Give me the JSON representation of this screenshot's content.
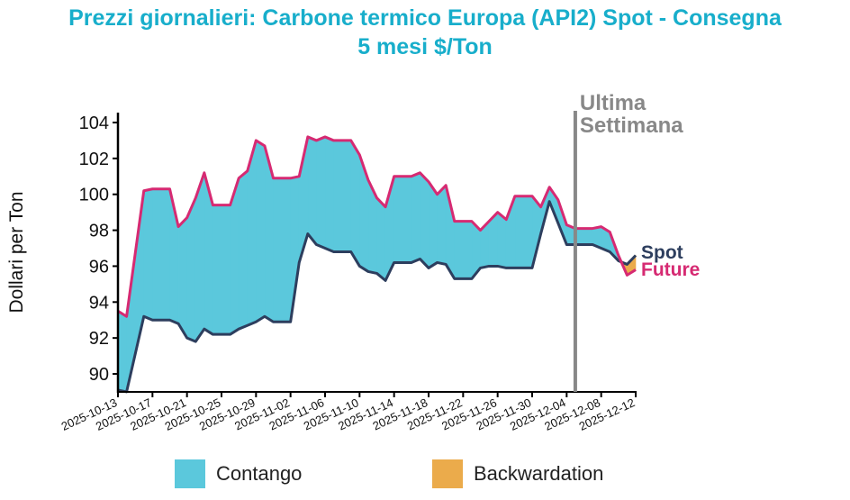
{
  "chart_data": {
    "type": "area",
    "title_line1": "Prezzi giornalieri: Carbone termico Europa (API2) Spot - Consegna",
    "title_line2": "5 mesi $/Ton",
    "ylabel": "Dollari per Ton",
    "xlabel": "",
    "ylim": [
      88.9,
      104.6
    ],
    "yticks": [
      90,
      92,
      94,
      96,
      98,
      100,
      102,
      104
    ],
    "xlim": [
      "2025-10-13",
      "2025-12-12"
    ],
    "xticks": [
      "2025-10-13",
      "2025-10-17",
      "2025-10-21",
      "2025-10-25",
      "2025-10-29",
      "2025-11-02",
      "2025-11-06",
      "2025-11-10",
      "2025-11-14",
      "2025-11-18",
      "2025-11-22",
      "2025-11-26",
      "2025-11-30",
      "2025-12-04",
      "2025-12-08",
      "2025-12-12"
    ],
    "x": [
      "2025-10-13",
      "2025-10-14",
      "2025-10-16",
      "2025-10-17",
      "2025-10-19",
      "2025-10-20",
      "2025-10-21",
      "2025-10-22",
      "2025-10-23",
      "2025-10-24",
      "2025-10-26",
      "2025-10-27",
      "2025-10-28",
      "2025-10-29",
      "2025-10-30",
      "2025-10-31",
      "2025-11-02",
      "2025-11-03",
      "2025-11-04",
      "2025-11-05",
      "2025-11-06",
      "2025-11-07",
      "2025-11-09",
      "2025-11-10",
      "2025-11-11",
      "2025-11-12",
      "2025-11-13",
      "2025-11-14",
      "2025-11-16",
      "2025-11-17",
      "2025-11-18",
      "2025-11-19",
      "2025-11-20",
      "2025-11-21",
      "2025-11-23",
      "2025-11-24",
      "2025-11-25",
      "2025-11-26",
      "2025-11-27",
      "2025-11-28",
      "2025-11-30",
      "2025-12-01",
      "2025-12-02",
      "2025-12-03",
      "2025-12-04",
      "2025-12-05",
      "2025-12-07",
      "2025-12-08",
      "2025-12-09",
      "2025-12-10",
      "2025-12-11",
      "2025-12-12"
    ],
    "series": [
      {
        "name": "Spot",
        "color": "#2d3e5e",
        "values": [
          89.1,
          89.0,
          93.2,
          93.0,
          93.0,
          92.8,
          92.0,
          91.8,
          92.5,
          92.2,
          92.2,
          92.5,
          92.7,
          92.9,
          93.2,
          92.9,
          92.9,
          96.2,
          97.8,
          97.2,
          97.0,
          96.8,
          96.8,
          96.0,
          95.7,
          95.6,
          95.2,
          96.2,
          96.2,
          96.4,
          95.9,
          96.2,
          96.1,
          95.3,
          95.3,
          95.9,
          96.0,
          96.0,
          95.9,
          95.9,
          95.9,
          97.8,
          99.6,
          98.4,
          97.2,
          97.2,
          97.2,
          97.0,
          96.8,
          96.3,
          96.1,
          96.6
        ]
      },
      {
        "name": "Future",
        "color": "#d62a72",
        "values": [
          93.5,
          93.2,
          100.2,
          100.3,
          100.3,
          98.2,
          98.7,
          99.8,
          101.2,
          99.4,
          99.4,
          100.9,
          101.3,
          103.0,
          102.7,
          100.9,
          100.9,
          101.0,
          103.2,
          103.0,
          103.2,
          103.0,
          103.0,
          102.2,
          100.8,
          99.8,
          99.3,
          101.0,
          101.0,
          101.2,
          100.7,
          100.0,
          100.5,
          98.5,
          98.5,
          98.0,
          98.5,
          99.0,
          98.6,
          99.9,
          99.9,
          99.3,
          100.4,
          99.7,
          98.3,
          98.1,
          98.1,
          98.2,
          97.9,
          96.6,
          95.5,
          95.8
        ]
      }
    ],
    "fills": {
      "contango": {
        "label": "Contango",
        "color": "#5bc8dc"
      },
      "backwardation": {
        "label": "Backwardation",
        "color": "#ebab4b"
      }
    },
    "marker": {
      "date": "2025-12-05",
      "label1": "Ultima",
      "label2": "Settimana",
      "color": "#888888"
    },
    "legend": "bottom"
  }
}
